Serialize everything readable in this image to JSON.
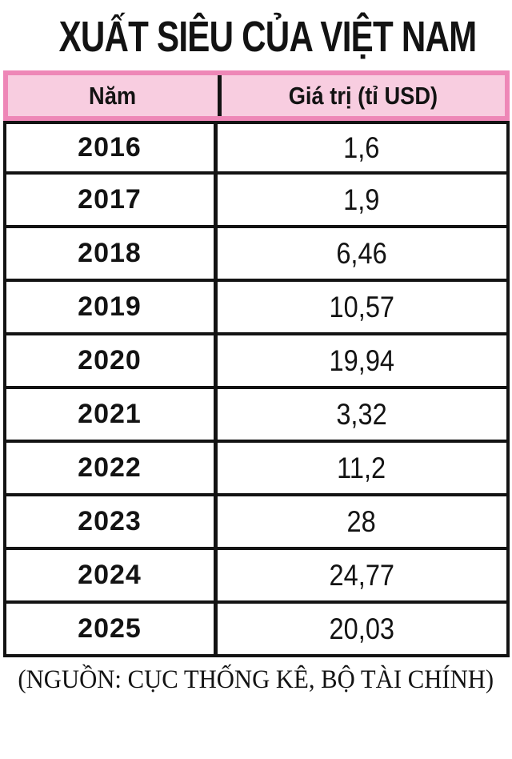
{
  "title": "XUẤT SIÊU CỦA VIỆT NAM",
  "source": "(NGUỒN: CỤC THỐNG KÊ, BỘ TÀI CHÍNH)",
  "colors": {
    "header_fill": "#f8cde0",
    "header_border": "#ee87b7",
    "line": "#131313",
    "text": "#131313"
  },
  "table": {
    "headers": [
      "Năm",
      "Giá trị (tỉ USD)"
    ],
    "rows": [
      {
        "year": "2016",
        "value": "1,6"
      },
      {
        "year": "2017",
        "value": "1,9"
      },
      {
        "year": "2018",
        "value": "6,46"
      },
      {
        "year": "2019",
        "value": "10,57"
      },
      {
        "year": "2020",
        "value": "19,94"
      },
      {
        "year": "2021",
        "value": "3,32"
      },
      {
        "year": "2022",
        "value": "11,2"
      },
      {
        "year": "2023",
        "value": "28"
      },
      {
        "year": "2024",
        "value": "24,77"
      },
      {
        "year": "2025",
        "value": "20,03"
      }
    ]
  },
  "chart_data": {
    "type": "table",
    "title": "XUẤT SIÊU CỦA VIỆT NAM",
    "columns": [
      "Năm",
      "Giá trị (tỉ USD)"
    ],
    "categories": [
      "2016",
      "2017",
      "2018",
      "2019",
      "2020",
      "2021",
      "2022",
      "2023",
      "2024",
      "2025"
    ],
    "values": [
      1.6,
      1.9,
      6.46,
      10.57,
      19.94,
      3.32,
      11.2,
      28,
      24.77,
      20.03
    ],
    "source": "(NGUỒN: CỤC THỐNG KÊ, BỘ TÀI CHÍNH)"
  }
}
